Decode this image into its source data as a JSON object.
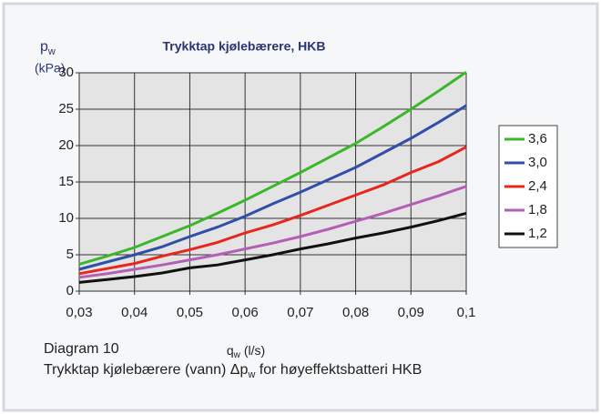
{
  "chart_data": {
    "type": "line",
    "title": "Trykktap kjølebærere, HKB",
    "y_label": {
      "main": "p",
      "sub": "w",
      "unit": "(kPa)"
    },
    "x_label": {
      "main": "q",
      "sub": "w",
      "unit": "(l/s)"
    },
    "caption": {
      "number": "Diagram 10",
      "text_before": "Trykktap kjølebærere (vann) Δp",
      "sub": "w",
      "text_after": " for høyeffektsbatteri HKB"
    },
    "x": [
      0.03,
      0.035,
      0.04,
      0.045,
      0.05,
      0.055,
      0.06,
      0.065,
      0.07,
      0.075,
      0.08,
      0.085,
      0.09,
      0.095,
      0.1
    ],
    "series": [
      {
        "name": "3,6",
        "color": "#3cb72c",
        "values": [
          3.7,
          4.8,
          6.0,
          7.5,
          9.0,
          10.7,
          12.5,
          14.4,
          16.3,
          18.3,
          20.3,
          22.6,
          25.0,
          27.5,
          30.1
        ]
      },
      {
        "name": "3,0",
        "color": "#2f4fa8",
        "values": [
          3.0,
          4.0,
          5.0,
          6.1,
          7.5,
          8.8,
          10.3,
          12.0,
          13.6,
          15.3,
          17.0,
          19.0,
          21.0,
          23.2,
          25.5
        ]
      },
      {
        "name": "2,4",
        "color": "#e8261f",
        "values": [
          2.4,
          3.1,
          3.8,
          4.8,
          5.7,
          6.7,
          8.0,
          9.1,
          10.4,
          11.8,
          13.2,
          14.6,
          16.3,
          17.8,
          19.8
        ]
      },
      {
        "name": "1,8",
        "color": "#b35fb5",
        "values": [
          1.9,
          2.4,
          3.0,
          3.6,
          4.3,
          5.0,
          5.8,
          6.6,
          7.5,
          8.5,
          9.6,
          10.7,
          11.9,
          13.1,
          14.4
        ]
      },
      {
        "name": "1,2",
        "color": "#111111",
        "values": [
          1.2,
          1.6,
          2.0,
          2.5,
          3.2,
          3.6,
          4.3,
          5.0,
          5.8,
          6.5,
          7.3,
          8.0,
          8.8,
          9.7,
          10.7
        ]
      }
    ],
    "xlim": [
      0.03,
      0.1
    ],
    "xticks": [
      {
        "value": 0.03,
        "label": "0,03"
      },
      {
        "value": 0.04,
        "label": "0,04"
      },
      {
        "value": 0.05,
        "label": "0,05"
      },
      {
        "value": 0.06,
        "label": "0,06"
      },
      {
        "value": 0.07,
        "label": "0,07"
      },
      {
        "value": 0.08,
        "label": "0,08"
      },
      {
        "value": 0.09,
        "label": "0,09"
      },
      {
        "value": 0.1,
        "label": "0,1"
      }
    ],
    "ylim": [
      0,
      30
    ],
    "yticks": [
      0,
      5,
      10,
      15,
      20,
      25,
      30
    ],
    "grid": true,
    "legend": "right"
  }
}
